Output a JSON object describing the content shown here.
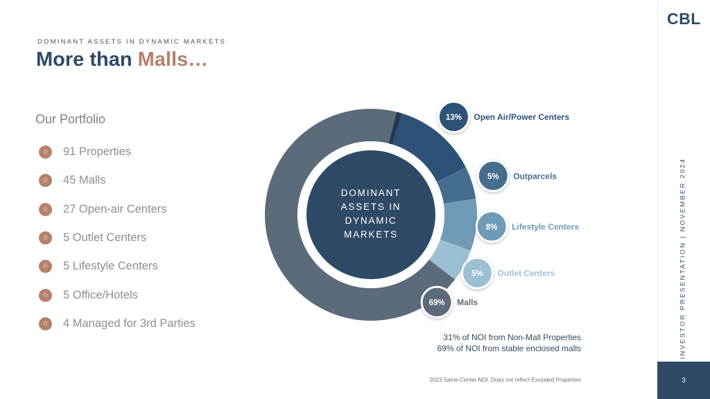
{
  "header": {
    "kicker": "DOMINANT ASSETS IN DYNAMIC MARKETS",
    "title_main": "More than ",
    "title_accent": "Malls…"
  },
  "brand": {
    "logo": "CBL"
  },
  "sidebar": {
    "vertical_text": "INVESTOR PRESENTATION | NOVEMBER 2024"
  },
  "page": {
    "number": "3"
  },
  "portfolio": {
    "heading": "Our Portfolio",
    "icon": "star-icon",
    "items": [
      "91 Properties",
      "45 Malls",
      "27 Open-air Centers",
      "5 Outlet Centers",
      "5 Lifestyle Centers",
      "5 Office/Hotels",
      "4 Managed for 3rd Parties"
    ]
  },
  "chart_data": {
    "type": "pie",
    "variant": "donut",
    "center_label": [
      "DOMINANT",
      "ASSETS IN",
      "DYNAMIC",
      "MARKETS"
    ],
    "slices": [
      {
        "label": "Open Air/Power Centers",
        "value": 13,
        "display": "13%",
        "color": "#2e5277"
      },
      {
        "label": "Outparcels",
        "value": 5,
        "display": "5%",
        "color": "#456d8e"
      },
      {
        "label": "Lifestyle Centers",
        "value": 8,
        "display": "8%",
        "color": "#6f9bb7"
      },
      {
        "label": "Outlet Centers",
        "value": 5,
        "display": "5%",
        "color": "#9cc0d3"
      },
      {
        "label": "Malls",
        "value": 69,
        "display": "69%",
        "color": "#5c6b79"
      }
    ],
    "center_color": "#2f4a66",
    "ring_color_dark": "#233a52"
  },
  "notes": {
    "line1": "31% of NOI from Non-Mall Properties",
    "line2": "69% of NOI from stable enclosed malls"
  },
  "footnote": "2023 Same-Center NOI. Does not reflect Excluded Properties",
  "colors": {
    "primary": "#2f4a66",
    "accent": "#b6806a",
    "muted_text": "#8a8e93"
  }
}
